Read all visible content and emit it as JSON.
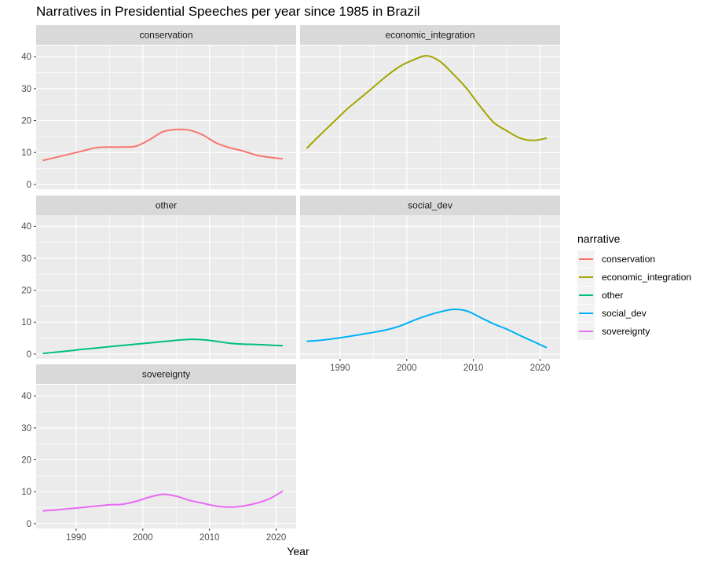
{
  "chart_data": {
    "type": "line",
    "title": "Narratives in Presidential Speeches per year since 1985 in Brazil",
    "xlabel": "Year",
    "ylabel": "",
    "xlim": [
      1984,
      2023
    ],
    "ylim": [
      -1.5,
      43.5
    ],
    "x_ticks": [
      1990,
      2000,
      2010,
      2020
    ],
    "y_ticks": [
      0,
      10,
      20,
      30,
      40
    ],
    "grid": true,
    "legend": {
      "title": "narrative",
      "position": "right"
    },
    "x": [
      1985,
      1987,
      1989,
      1991,
      1993,
      1995,
      1997,
      1999,
      2001,
      2003,
      2005,
      2007,
      2009,
      2011,
      2013,
      2015,
      2017,
      2019,
      2021
    ],
    "series": [
      {
        "name": "conservation",
        "color": "#F8766D",
        "values": [
          7.5,
          8.5,
          9.5,
          10.5,
          11.5,
          11.7,
          11.7,
          12.0,
          14.0,
          16.5,
          17.2,
          17.0,
          15.5,
          13.0,
          11.5,
          10.5,
          9.2,
          8.5,
          8.0
        ]
      },
      {
        "name": "economic_integration",
        "color": "#A3A500",
        "values": [
          11.3,
          15.5,
          19.5,
          23.5,
          27.0,
          30.5,
          34.0,
          37.0,
          39.0,
          40.3,
          38.5,
          34.5,
          30.0,
          24.5,
          19.5,
          16.8,
          14.5,
          13.8,
          14.5
        ]
      },
      {
        "name": "other",
        "color": "#00BF7D",
        "values": [
          0.2,
          0.6,
          1.0,
          1.5,
          1.9,
          2.3,
          2.7,
          3.1,
          3.5,
          3.9,
          4.3,
          4.6,
          4.5,
          4.0,
          3.4,
          3.1,
          3.0,
          2.8,
          2.6
        ]
      },
      {
        "name": "social_dev",
        "color": "#00B0F6",
        "values": [
          4.0,
          4.3,
          4.8,
          5.4,
          6.1,
          6.8,
          7.6,
          8.8,
          10.5,
          12.0,
          13.2,
          14.0,
          13.5,
          11.5,
          9.5,
          7.8,
          5.8,
          3.9,
          2.0
        ]
      },
      {
        "name": "sovereignty",
        "color": "#E76BF3",
        "values": [
          4.0,
          4.3,
          4.7,
          5.1,
          5.5,
          5.9,
          6.1,
          7.0,
          8.3,
          9.2,
          8.6,
          7.3,
          6.4,
          5.5,
          5.2,
          5.5,
          6.4,
          7.8,
          10.2
        ]
      }
    ],
    "panels": [
      "conservation",
      "economic_integration",
      "other",
      "social_dev",
      "sovereignty"
    ]
  }
}
